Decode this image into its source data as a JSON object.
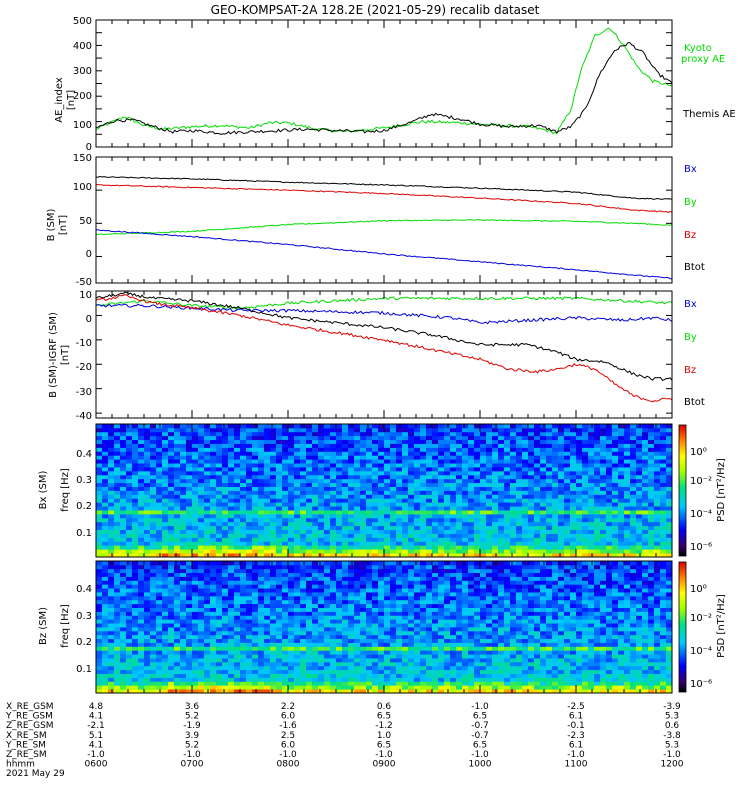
{
  "title": "GEO-KOMPSAT-2A 128.2E (2021-05-29) recalib dataset",
  "colors": {
    "black": "#000000",
    "red": "#e00000",
    "green": "#00dd00",
    "blue": "#0000dd"
  },
  "panels": {
    "ae": {
      "ylabel_lines": [
        "AE_index",
        "[nT]"
      ],
      "ylim": [
        0,
        500
      ],
      "yticks": [
        "0",
        "100",
        "200",
        "300",
        "400",
        "500"
      ],
      "legend": [
        {
          "lines": [
            "Kyoto",
            "proxy AE"
          ],
          "color": "#00dd00"
        },
        {
          "lines": [
            "Themis AE"
          ],
          "color": "#000000"
        }
      ]
    },
    "bsm": {
      "ylabel_lines": [
        "B (SM)",
        "[nT]"
      ],
      "ylim": [
        -40,
        150
      ],
      "yticks": [
        "150",
        "100",
        "50",
        "0",
        "-50"
      ],
      "legend": [
        {
          "lines": [
            "Bx"
          ],
          "color": "#0000dd"
        },
        {
          "lines": [
            "By"
          ],
          "color": "#00dd00"
        },
        {
          "lines": [
            "Bz"
          ],
          "color": "#e00000"
        },
        {
          "lines": [
            "Btot"
          ],
          "color": "#000000"
        }
      ]
    },
    "bigrf": {
      "ylabel_lines": [
        "B (SM)-IGRF (SM)",
        "[nT]"
      ],
      "ylim": [
        -42,
        10
      ],
      "yticks": [
        "10",
        "0",
        "-10",
        "-20",
        "-30",
        "-40"
      ],
      "legend": [
        {
          "lines": [
            "Bx"
          ],
          "color": "#0000dd"
        },
        {
          "lines": [
            "By"
          ],
          "color": "#00dd00"
        },
        {
          "lines": [
            "Bz"
          ],
          "color": "#e00000"
        },
        {
          "lines": [
            "Btot"
          ],
          "color": "#000000"
        }
      ]
    },
    "spec_bx": {
      "ylabel_lines": [
        "Bx (SM)",
        "freq [Hz]"
      ],
      "yticks": [
        "0.4",
        "0.3",
        "0.2",
        "0.1"
      ],
      "colorbar_label": "PSD [nT²/Hz]",
      "colorbar_ticks": [
        "10⁰",
        "10⁻²",
        "10⁻⁴",
        "10⁻⁶"
      ]
    },
    "spec_bz": {
      "ylabel_lines": [
        "Bz (SM)",
        "freq [Hz]"
      ],
      "yticks": [
        "0.4",
        "0.3",
        "0.2",
        "0.1"
      ],
      "colorbar_label": "PSD [nT²/Hz]",
      "colorbar_ticks": [
        "10⁰",
        "10⁻²",
        "10⁻⁴",
        "10⁻⁶"
      ]
    }
  },
  "orbit_table": {
    "row_labels": [
      "X_RE_GSM",
      "Y_RE_GSM",
      "Z_RE_GSM",
      "X_RE_SM",
      "Y_RE_SM",
      "Z_RE_SM",
      "hhmm",
      "2021 May 29"
    ],
    "columns": [
      [
        "4.8",
        "4.1",
        "-2.1",
        "5.1",
        "4.1",
        "-1.0",
        "0600"
      ],
      [
        "3.6",
        "5.2",
        "-1.9",
        "3.9",
        "5.2",
        "-1.0",
        "0700"
      ],
      [
        "2.2",
        "6.0",
        "-1.6",
        "2.5",
        "6.0",
        "-1.0",
        "0800"
      ],
      [
        "0.6",
        "6.5",
        "-1.2",
        "1.0",
        "6.5",
        "-1.0",
        "0900"
      ],
      [
        "-1.0",
        "6.5",
        "-0.7",
        "-0.7",
        "6.5",
        "-1.0",
        "1000"
      ],
      [
        "-2.5",
        "6.1",
        "-0.1",
        "-2.3",
        "6.1",
        "-1.0",
        "1100"
      ],
      [
        "-3.9",
        "5.3",
        "0.6",
        "-3.8",
        "5.3",
        "-1.0",
        "1200"
      ]
    ]
  },
  "chart_data": [
    {
      "type": "line",
      "panel": "AE index",
      "x_unit": "hour UT",
      "xlim": [
        6,
        12
      ],
      "ylim": [
        0,
        500
      ],
      "series": [
        {
          "name": "Kyoto proxy AE",
          "color": "#00dd00",
          "x": [
            6.0,
            6.15,
            6.3,
            6.5,
            6.7,
            7.0,
            7.3,
            7.6,
            7.8,
            8.0,
            8.3,
            8.6,
            9.0,
            9.4,
            9.8,
            10.2,
            10.5,
            10.7,
            10.8,
            10.95,
            11.05,
            11.2,
            11.35,
            11.5,
            11.65,
            11.8,
            12.0
          ],
          "y": [
            70,
            95,
            120,
            85,
            70,
            80,
            85,
            75,
            95,
            95,
            70,
            60,
            75,
            100,
            95,
            85,
            80,
            65,
            55,
            150,
            300,
            440,
            470,
            400,
            310,
            260,
            240
          ]
        },
        {
          "name": "Themis AE",
          "color": "#000000",
          "x": [
            6.0,
            6.2,
            6.4,
            6.6,
            6.8,
            7.0,
            7.3,
            7.6,
            7.9,
            8.2,
            8.5,
            8.8,
            9.0,
            9.3,
            9.5,
            9.8,
            10.0,
            10.3,
            10.6,
            10.8,
            10.95,
            11.1,
            11.25,
            11.4,
            11.55,
            11.7,
            11.85,
            12.0
          ],
          "y": [
            75,
            105,
            105,
            80,
            60,
            65,
            55,
            60,
            65,
            70,
            65,
            60,
            65,
            100,
            130,
            110,
            90,
            80,
            85,
            60,
            80,
            150,
            290,
            380,
            410,
            370,
            290,
            250
          ]
        }
      ]
    },
    {
      "type": "line",
      "panel": "B (SM)",
      "x_unit": "hour UT",
      "xlim": [
        6,
        12
      ],
      "ylim": [
        -40,
        150
      ],
      "series": [
        {
          "name": "Btot",
          "color": "#000000",
          "x": [
            6,
            7,
            8,
            9,
            10,
            11,
            11.6,
            12
          ],
          "y": [
            120,
            117,
            112,
            108,
            103,
            97,
            88,
            86
          ]
        },
        {
          "name": "Bz",
          "color": "#e00000",
          "x": [
            6,
            7,
            8,
            9,
            10,
            11,
            11.6,
            12
          ],
          "y": [
            108,
            104,
            100,
            95,
            88,
            80,
            70,
            67
          ]
        },
        {
          "name": "By",
          "color": "#00dd00",
          "x": [
            6,
            7,
            8,
            9,
            10,
            11,
            11.6,
            12
          ],
          "y": [
            33,
            38,
            48,
            54,
            55,
            53,
            50,
            47
          ]
        },
        {
          "name": "Bx",
          "color": "#0000dd",
          "x": [
            6,
            7,
            8,
            9,
            10,
            11,
            11.6,
            12
          ],
          "y": [
            40,
            30,
            18,
            4,
            -8,
            -20,
            -28,
            -33
          ]
        }
      ]
    },
    {
      "type": "line",
      "panel": "B (SM)-IGRF (SM)",
      "x_unit": "hour UT",
      "xlim": [
        6,
        12
      ],
      "ylim": [
        -42,
        10
      ],
      "series": [
        {
          "name": "By",
          "color": "#00dd00",
          "x": [
            6,
            6.5,
            7,
            7.5,
            8,
            9,
            10,
            11,
            11.5,
            12
          ],
          "y": [
            4,
            6,
            4,
            3,
            5,
            7,
            7,
            7,
            6,
            5
          ]
        },
        {
          "name": "Bx",
          "color": "#0000dd",
          "x": [
            6,
            6.5,
            7,
            7.5,
            8,
            9,
            9.7,
            10,
            10.5,
            11,
            11.5,
            11.8,
            12
          ],
          "y": [
            4,
            4,
            3,
            2,
            2,
            1,
            -1,
            -3,
            -2,
            -1,
            -2,
            -1,
            -2
          ]
        },
        {
          "name": "Btot",
          "color": "#000000",
          "x": [
            6,
            6.3,
            6.6,
            7,
            7.5,
            8,
            8.5,
            9,
            9.5,
            10,
            10.5,
            10.8,
            11,
            11.3,
            11.6,
            11.8,
            12
          ],
          "y": [
            7,
            9,
            7,
            6,
            3,
            -1,
            -3,
            -5,
            -8,
            -12,
            -12,
            -15,
            -18,
            -19,
            -24,
            -26,
            -26
          ]
        },
        {
          "name": "Bz",
          "color": "#e00000",
          "x": [
            6,
            6.3,
            6.6,
            7,
            7.5,
            8,
            8.5,
            9,
            9.5,
            10,
            10.3,
            10.6,
            10.8,
            11,
            11.2,
            11.4,
            11.6,
            11.8,
            12
          ],
          "y": [
            6,
            8,
            5,
            3,
            0,
            -4,
            -7,
            -10,
            -14,
            -18,
            -22,
            -23,
            -22,
            -20,
            -22,
            -28,
            -33,
            -35,
            -34
          ]
        }
      ]
    },
    {
      "type": "heatmap",
      "panel": "Bx (SM) spectrogram",
      "x_unit": "hour UT",
      "xlim": [
        6,
        12
      ],
      "y_unit": "Hz",
      "ylim": [
        0,
        0.5
      ],
      "colorbar": "PSD [nT²/Hz], log scale, approx 10⁻⁷ to 10¹",
      "features": "highest PSD below 0.05 Hz, enhanced band near 0.17 Hz"
    },
    {
      "type": "heatmap",
      "panel": "Bz (SM) spectrogram",
      "x_unit": "hour UT",
      "xlim": [
        6,
        12
      ],
      "y_unit": "Hz",
      "ylim": [
        0,
        0.5
      ],
      "colorbar": "PSD [nT²/Hz], log scale, approx 10⁻⁷ to 10¹",
      "features": "highest PSD below 0.05 Hz, enhanced band near 0.17 Hz"
    }
  ]
}
